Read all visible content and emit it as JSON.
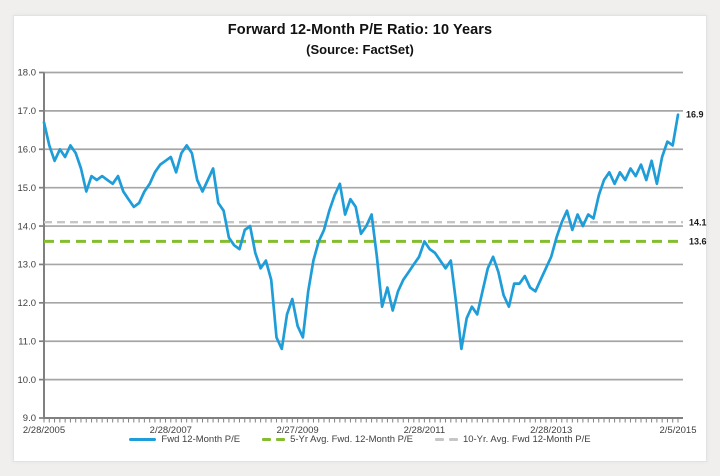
{
  "window": {
    "background": "#f0efee",
    "card_background": "#ffffff",
    "card_border": "#e3e2e1"
  },
  "header": {
    "title": "Forward 12-Month P/E Ratio: 10 Years",
    "subtitle": "(Source: FactSet)"
  },
  "legend": {
    "items": [
      {
        "label": "Fwd 12-Month P/E",
        "color": "#1f9dd9",
        "style": "solid"
      },
      {
        "label": "5-Yr Avg. Fwd. 12-Month P/E",
        "color": "#84bd2f",
        "style": "dashed"
      },
      {
        "label": "10-Yr. Avg. Fwd 12-Month P/E",
        "color": "#c6c6c6",
        "style": "dashed"
      }
    ]
  },
  "chart_data": {
    "type": "line",
    "title": "Forward 12-Month P/E Ratio: 10 Years",
    "subtitle": "(Source: FactSet)",
    "ylim": [
      9.0,
      18.0
    ],
    "y_tick_values": [
      9,
      10,
      11,
      12,
      13,
      14,
      15,
      16,
      17,
      18
    ],
    "y_tick_labels": [
      "9.0",
      "10.0",
      "11.0",
      "12.0",
      "13.0",
      "14.0",
      "15.0",
      "16.0",
      "17.0",
      "18.0"
    ],
    "x_tick_labels": [
      "2/28/2005",
      "2/28/2007",
      "2/27/2009",
      "2/28/2011",
      "2/28/2013",
      "2/5/2015"
    ],
    "x_tick_point_indices": [
      0,
      24,
      48,
      72,
      96,
      120
    ],
    "x_minor_tick_every_point": true,
    "grid": "horizontal",
    "legend_position": "bottom",
    "style": {
      "axis_color": "#808080",
      "grid_color": "#a6a6a6",
      "tick_label_color": "#404040",
      "annotation_color": "#1a1a1a"
    },
    "series": [
      {
        "name": "Fwd 12-Month P/E",
        "type": "line",
        "color": "#1f9dd9",
        "end_label": "16.9",
        "values": [
          16.7,
          16.1,
          15.7,
          16.0,
          15.8,
          16.1,
          15.9,
          15.5,
          14.9,
          15.3,
          15.2,
          15.3,
          15.2,
          15.1,
          15.3,
          14.9,
          14.7,
          14.5,
          14.6,
          14.9,
          15.1,
          15.4,
          15.6,
          15.7,
          15.8,
          15.4,
          15.9,
          16.1,
          15.9,
          15.2,
          14.9,
          15.2,
          15.5,
          14.6,
          14.4,
          13.7,
          13.5,
          13.4,
          13.9,
          14.0,
          13.3,
          12.9,
          13.1,
          12.6,
          11.1,
          10.8,
          11.7,
          12.1,
          11.4,
          11.1,
          12.3,
          13.1,
          13.6,
          13.9,
          14.4,
          14.8,
          15.1,
          14.3,
          14.7,
          14.5,
          13.8,
          14.0,
          14.3,
          13.2,
          11.9,
          12.4,
          11.8,
          12.3,
          12.6,
          12.8,
          13.0,
          13.2,
          13.6,
          13.4,
          13.3,
          13.1,
          12.9,
          13.1,
          12.0,
          10.8,
          11.6,
          11.9,
          11.7,
          12.3,
          12.9,
          13.2,
          12.8,
          12.2,
          11.9,
          12.5,
          12.5,
          12.7,
          12.4,
          12.3,
          12.6,
          12.9,
          13.2,
          13.7,
          14.1,
          14.4,
          13.9,
          14.3,
          14.0,
          14.3,
          14.2,
          14.8,
          15.2,
          15.4,
          15.1,
          15.4,
          15.2,
          15.5,
          15.3,
          15.6,
          15.2,
          15.7,
          15.1,
          15.8,
          16.2,
          16.1,
          16.9
        ]
      },
      {
        "name": "5-Yr Avg. Fwd. 12-Month P/E",
        "type": "hline",
        "color": "#84bd2f",
        "value": 13.6,
        "label": "13.6",
        "dash": [
          10,
          6
        ],
        "width": 3
      },
      {
        "name": "10-Yr. Avg. Fwd 12-Month P/E",
        "type": "hline",
        "color": "#c6c6c6",
        "value": 14.1,
        "label": "14.1",
        "dash": [
          8,
          5
        ],
        "width": 2.4
      }
    ]
  }
}
